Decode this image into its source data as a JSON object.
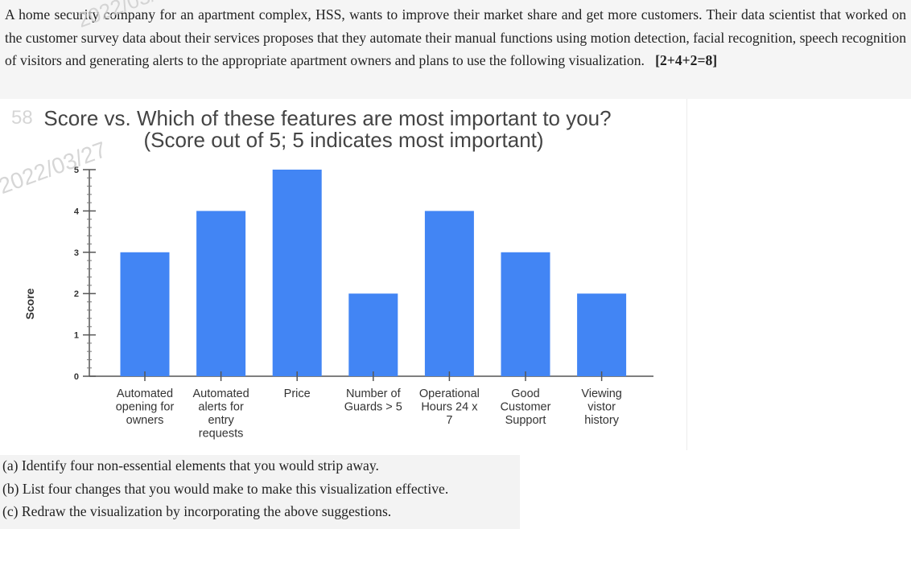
{
  "question": {
    "text": "A home security company for an apartment complex, HSS, wants to improve their market share and get more customers. Their data scientist that worked on the customer survey data about their services proposes that they automate their manual functions using motion detection, facial recognition, speech recognition of visitors and generating alerts to the appropriate apartment owners and plans to use the following visualization.",
    "marks": "[2+4+2=8]"
  },
  "watermark": {
    "top_text": "2022/03/27",
    "left_text": "2022/03/27",
    "left_prefix": "58"
  },
  "chart_data": {
    "type": "bar",
    "title": "Score vs. Which of these features are most important to you?",
    "subtitle": "(Score out of 5; 5 indicates most important)",
    "xlabel": "",
    "ylabel": "Score",
    "ylim": [
      0,
      5
    ],
    "yticks": [
      0,
      1,
      2,
      3,
      4,
      5
    ],
    "grid": false,
    "bar_color": "#4285f4",
    "categories": [
      [
        "Automated",
        "opening for",
        "owners"
      ],
      [
        "Automated",
        "alerts for",
        "entry",
        "requests"
      ],
      [
        "Price"
      ],
      [
        "Number of",
        "Guards > 5"
      ],
      [
        "Operational",
        "Hours 24 x",
        "7"
      ],
      [
        "Good",
        "Customer",
        "Support"
      ],
      [
        "Viewing",
        "vistor",
        "history"
      ]
    ],
    "values": [
      3,
      4,
      5,
      2,
      4,
      3,
      2
    ]
  },
  "subquestions": {
    "a": "(a) Identify four non-essential elements that you would strip away.",
    "b": "(b) List four changes that you would make to make this visualization effective.",
    "c": "(c) Redraw the visualization by incorporating the above suggestions."
  }
}
